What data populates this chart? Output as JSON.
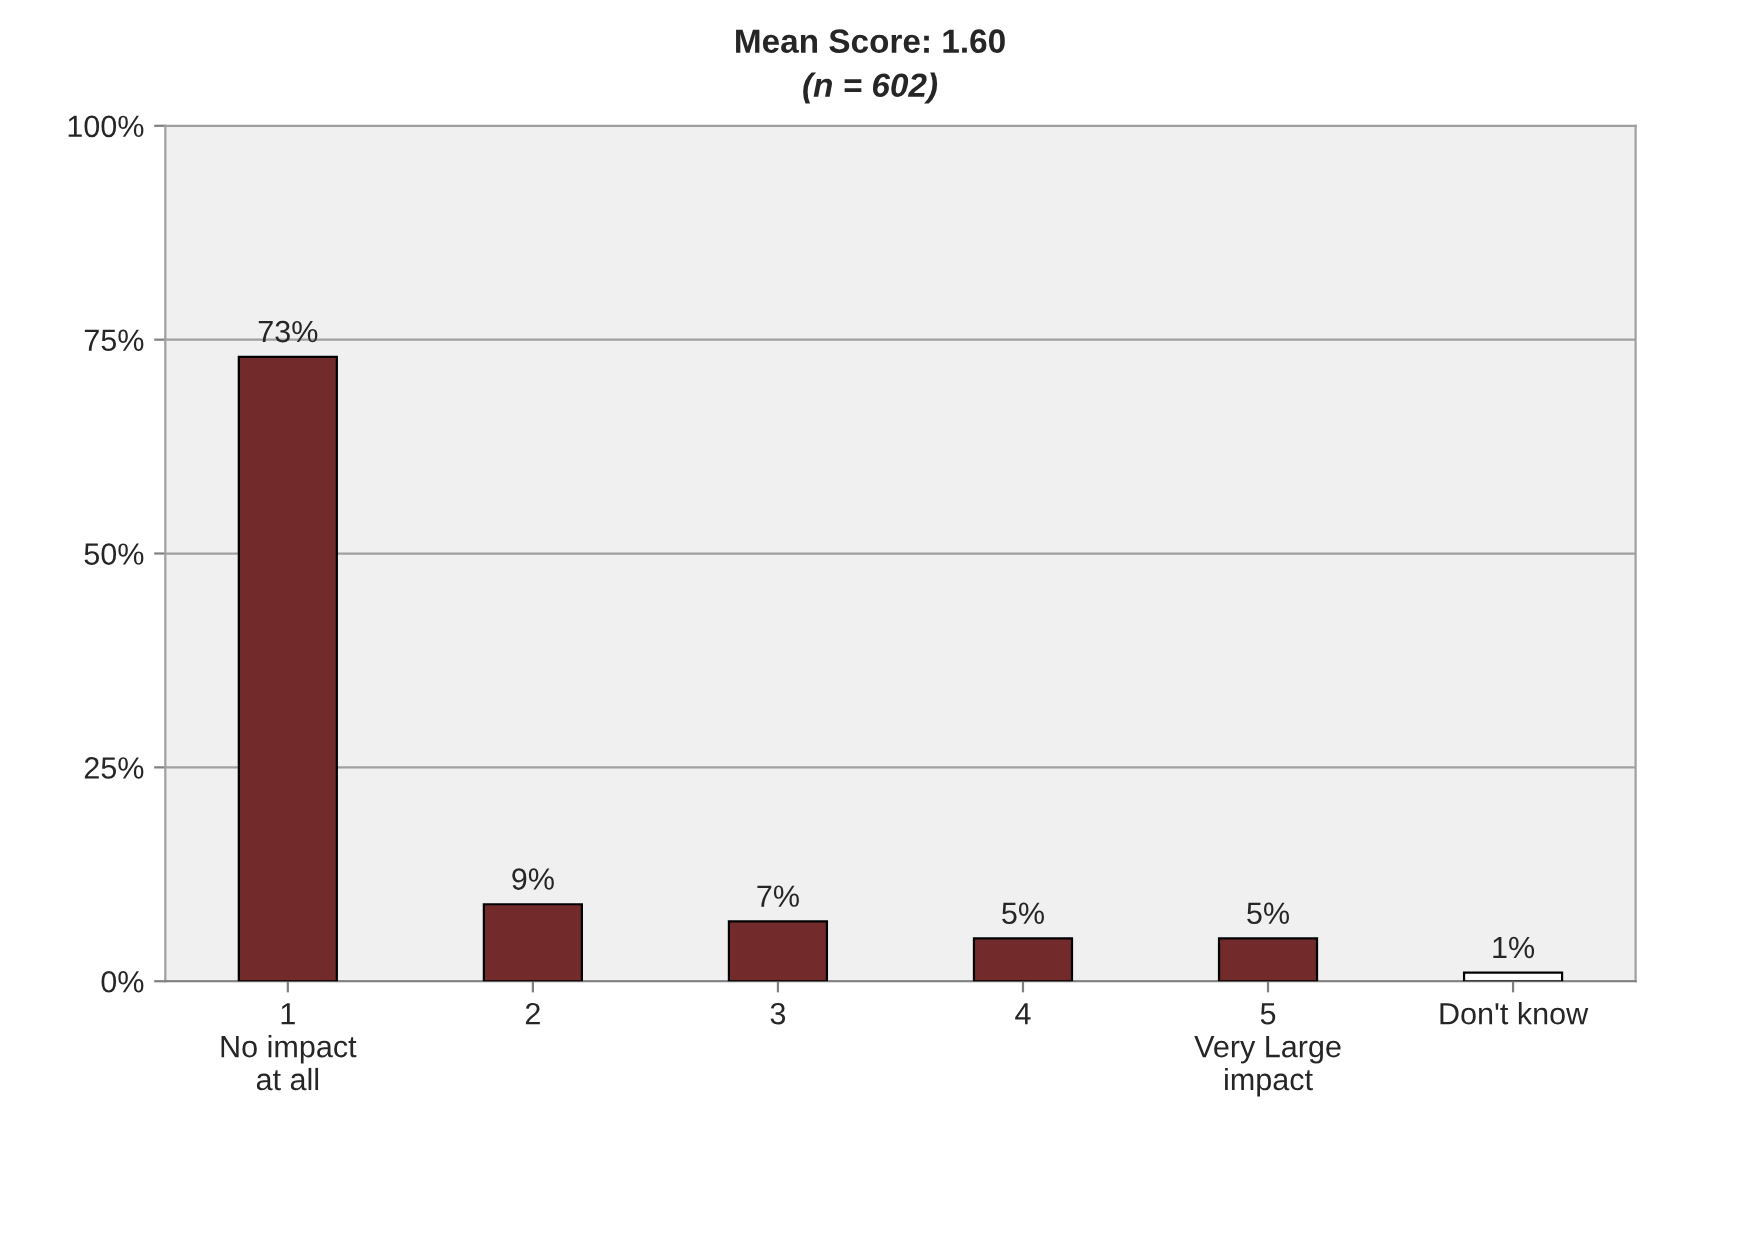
{
  "chart_data": {
    "type": "bar",
    "title": "Mean Score: 1.60",
    "subtitle": "(n = 602)",
    "categories": [
      "1\nNo impact\nat all",
      "2",
      "3",
      "4",
      "5\nVery Large\nimpact",
      "Don't know"
    ],
    "values": [
      73,
      9,
      7,
      5,
      5,
      1
    ],
    "colors": [
      "#722a2a",
      "#722a2a",
      "#722a2a",
      "#722a2a",
      "#722a2a",
      "#ffffff"
    ],
    "value_labels": [
      "73%",
      "9%",
      "7%",
      "5%",
      "5%",
      "1%"
    ],
    "ylim": [
      0,
      100
    ],
    "yticks": [
      {
        "value": 0,
        "label": "0%"
      },
      {
        "value": 25,
        "label": "25%"
      },
      {
        "value": 50,
        "label": "50%"
      },
      {
        "value": 75,
        "label": "75%"
      },
      {
        "value": 100,
        "label": "100%"
      }
    ],
    "grid": "y",
    "legend": false
  }
}
